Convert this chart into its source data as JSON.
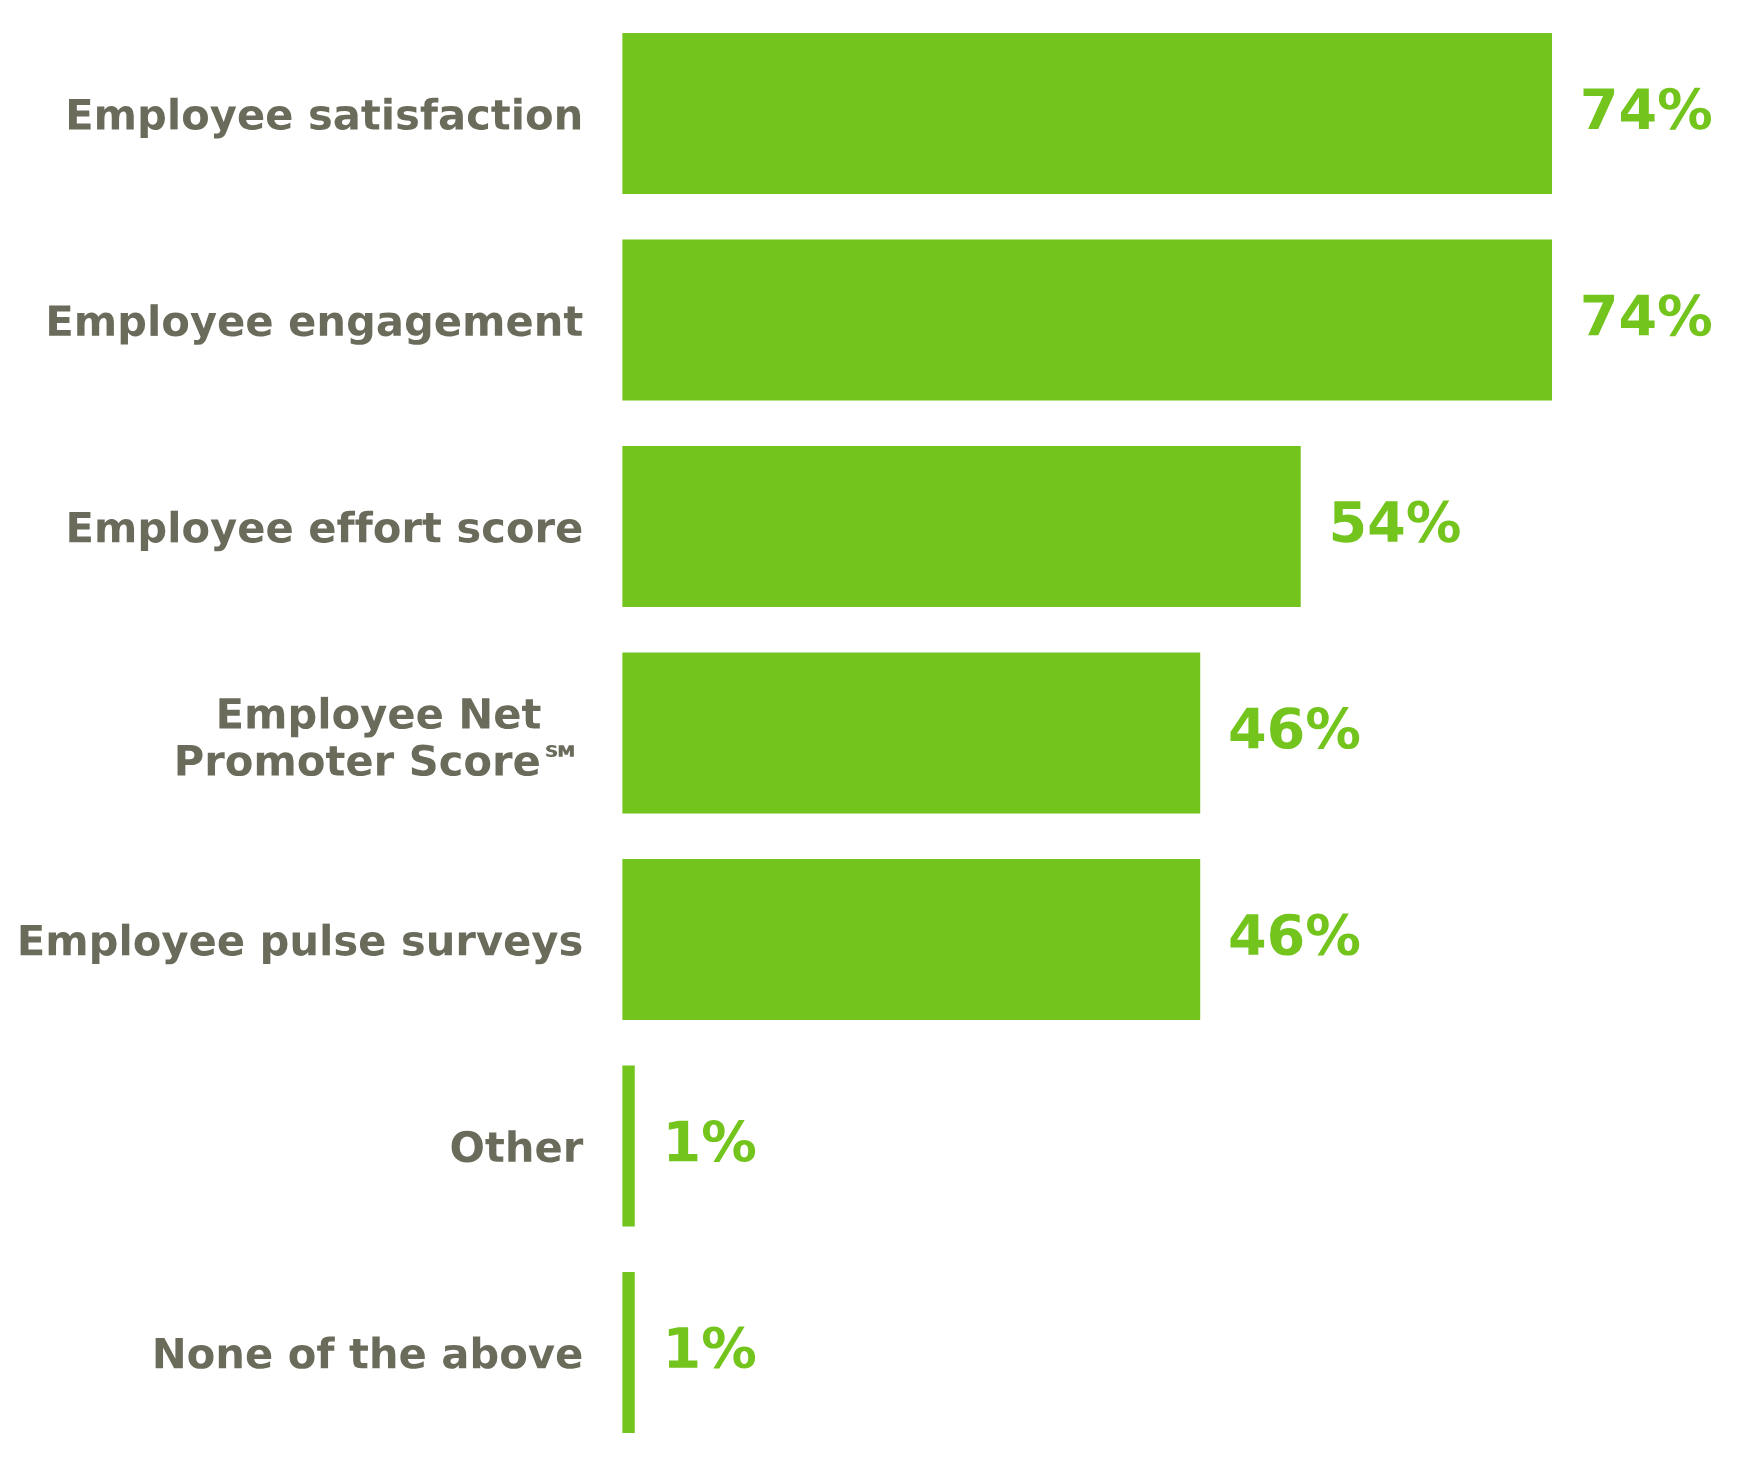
{
  "chart_data": {
    "type": "bar",
    "orientation": "horizontal",
    "categories": [
      "Employee satisfaction",
      "Employee engagement",
      "Employee effort score",
      "Employee Net\nPromoter Score℠",
      "Employee pulse surveys",
      "Other",
      "None of the above"
    ],
    "values": [
      74,
      74,
      54,
      46,
      46,
      1,
      1
    ],
    "value_labels": [
      "74%",
      "74%",
      "54%",
      "46%",
      "46%",
      "1%",
      "1%"
    ],
    "color": "#73c41d",
    "grid": false,
    "legend": false,
    "tick_labels": "y"
  }
}
